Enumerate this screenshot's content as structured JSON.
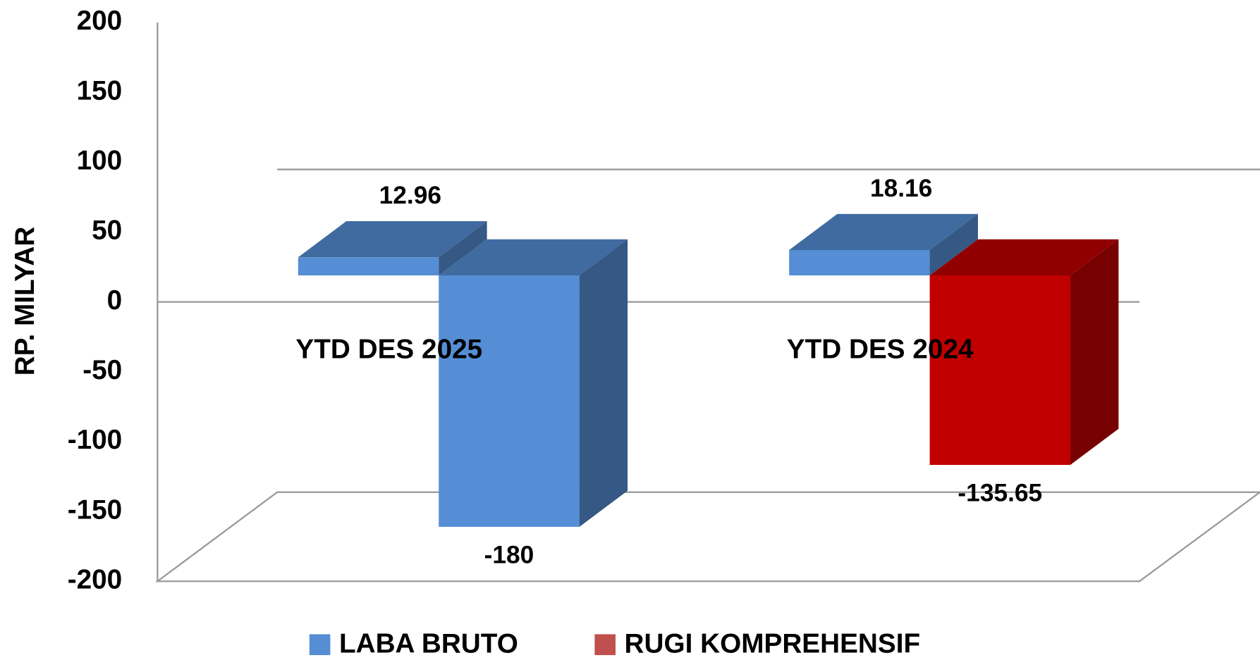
{
  "chart_data": {
    "type": "bar3d",
    "y_label": "RP. MILYAR",
    "categories": [
      "YTD DES 2025",
      "YTD DES 2024"
    ],
    "series": [
      {
        "name": "LABA BRUTO",
        "color": "#558ed5",
        "colors": [
          "#558ed5",
          "#558ed5"
        ],
        "values": [
          12.96,
          18.16
        ]
      },
      {
        "name": "RUGI KOMPREHENSIF",
        "color": "#c0504d",
        "colors": [
          "#558ed5",
          "#c00000"
        ],
        "values": [
          -180,
          -135.65
        ]
      }
    ],
    "ylim": [
      -200,
      200
    ],
    "yticks": [
      -200,
      -150,
      -100,
      -50,
      0,
      50,
      100,
      150,
      200
    ],
    "legend": "bottom"
  }
}
